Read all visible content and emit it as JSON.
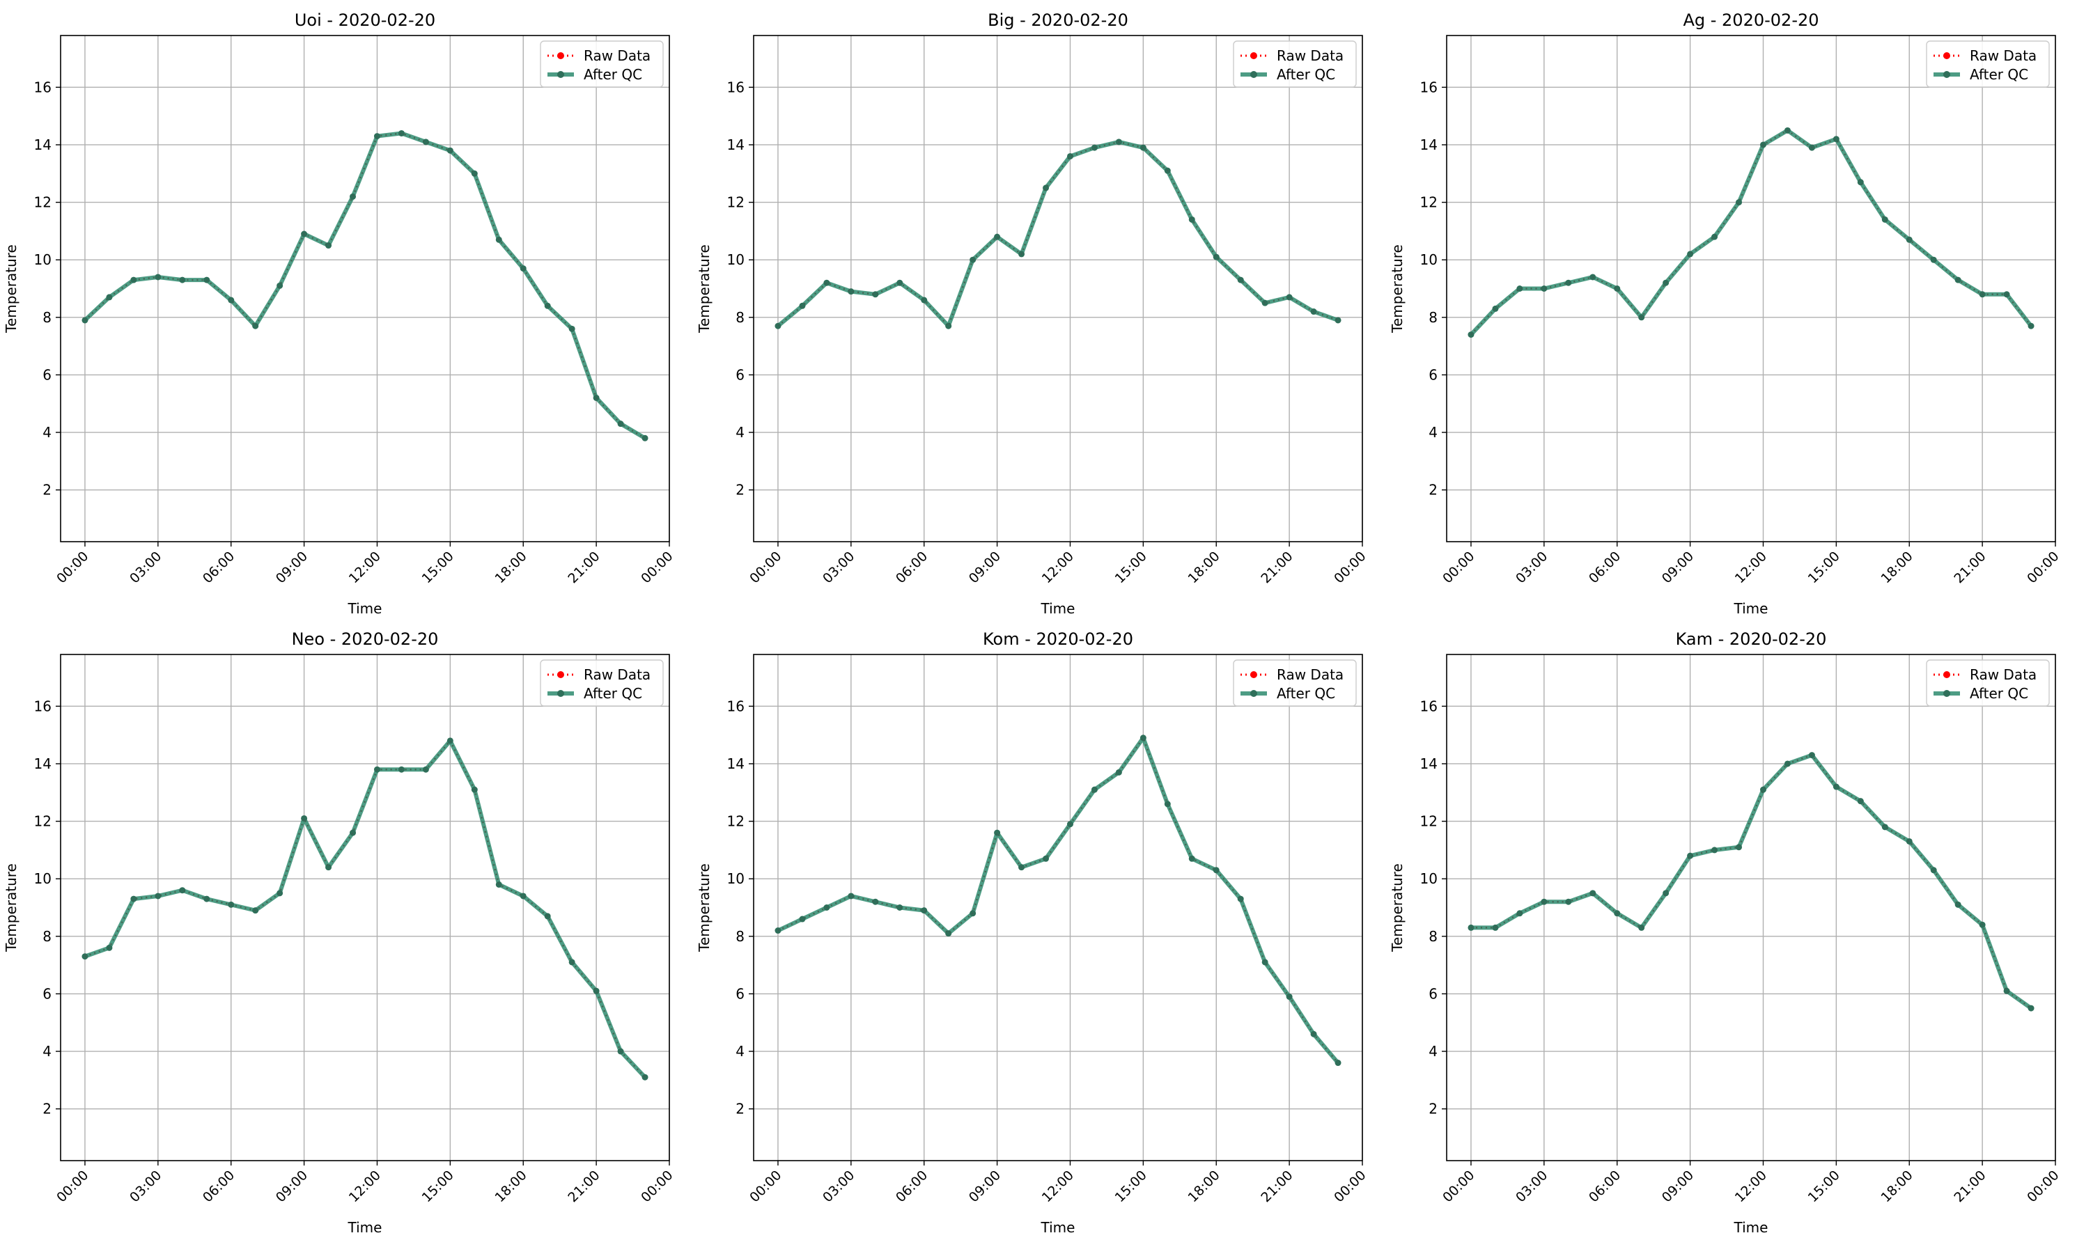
{
  "x_tick_labels": [
    "00:00",
    "03:00",
    "06:00",
    "09:00",
    "12:00",
    "15:00",
    "18:00",
    "21:00",
    "00:00"
  ],
  "y_tick_labels": [
    "2",
    "4",
    "6",
    "8",
    "10",
    "12",
    "14",
    "16"
  ],
  "xlabel": "Time",
  "ylabel": "Temperature",
  "legend": {
    "raw_label": "Raw Data",
    "qc_label": "After QC"
  },
  "colors": {
    "raw": "#ff0000",
    "qc": "#2e8b6f",
    "qc_marker": "#2f6f5a",
    "grid": "#b0b0b0"
  },
  "chart_data": [
    {
      "type": "line",
      "title": "Uoi - 2020-02-20",
      "xlabel": "Time",
      "ylabel": "Temperature",
      "x_unit": "hour of day",
      "xlim": [
        -1,
        24
      ],
      "ylim": [
        0.2,
        17.8
      ],
      "grid": true,
      "legend_position": "top-right",
      "x": [
        0,
        1,
        2,
        3,
        4,
        5,
        6,
        7,
        8,
        9,
        10,
        11,
        12,
        13,
        14,
        15,
        16,
        17,
        18,
        19,
        20,
        21,
        22,
        23
      ],
      "series": [
        {
          "name": "Raw Data",
          "values": [
            7.9,
            8.7,
            9.3,
            9.4,
            9.3,
            9.3,
            8.6,
            7.7,
            9.1,
            10.9,
            10.5,
            12.2,
            14.3,
            14.4,
            14.1,
            13.8,
            13.0,
            10.7,
            9.7,
            8.4,
            7.6,
            5.2,
            4.3,
            3.8
          ]
        },
        {
          "name": "After QC",
          "values": [
            7.9,
            8.7,
            9.3,
            9.4,
            9.3,
            9.3,
            8.6,
            7.7,
            9.1,
            10.9,
            10.5,
            12.2,
            14.3,
            14.4,
            14.1,
            13.8,
            13.0,
            10.7,
            9.7,
            8.4,
            7.6,
            5.2,
            4.3,
            3.8
          ]
        }
      ]
    },
    {
      "type": "line",
      "title": "Big - 2020-02-20",
      "xlabel": "Time",
      "ylabel": "Temperature",
      "x_unit": "hour of day",
      "xlim": [
        -1,
        24
      ],
      "ylim": [
        0.2,
        17.8
      ],
      "grid": true,
      "legend_position": "top-right",
      "x": [
        0,
        1,
        2,
        3,
        4,
        5,
        6,
        7,
        8,
        9,
        10,
        11,
        12,
        13,
        14,
        15,
        16,
        17,
        18,
        19,
        20,
        21,
        22,
        23
      ],
      "series": [
        {
          "name": "Raw Data",
          "values": [
            7.7,
            8.4,
            9.2,
            8.9,
            8.8,
            9.2,
            8.6,
            7.7,
            10.0,
            10.8,
            10.2,
            12.5,
            13.6,
            13.9,
            14.1,
            13.9,
            13.1,
            11.4,
            10.1,
            9.3,
            8.5,
            8.7,
            8.2,
            7.9
          ]
        },
        {
          "name": "After QC",
          "values": [
            7.7,
            8.4,
            9.2,
            8.9,
            8.8,
            9.2,
            8.6,
            7.7,
            10.0,
            10.8,
            10.2,
            12.5,
            13.6,
            13.9,
            14.1,
            13.9,
            13.1,
            11.4,
            10.1,
            9.3,
            8.5,
            8.7,
            8.2,
            7.9
          ]
        }
      ]
    },
    {
      "type": "line",
      "title": "Ag - 2020-02-20",
      "xlabel": "Time",
      "ylabel": "Temperature",
      "x_unit": "hour of day",
      "xlim": [
        -1,
        24
      ],
      "ylim": [
        0.2,
        17.8
      ],
      "grid": true,
      "legend_position": "top-right",
      "x": [
        0,
        1,
        2,
        3,
        4,
        5,
        6,
        7,
        8,
        9,
        10,
        11,
        12,
        13,
        14,
        15,
        16,
        17,
        18,
        19,
        20,
        21,
        22,
        23
      ],
      "series": [
        {
          "name": "Raw Data",
          "values": [
            7.4,
            8.3,
            9.0,
            9.0,
            9.2,
            9.4,
            9.0,
            8.0,
            9.2,
            10.2,
            10.8,
            12.0,
            14.0,
            14.5,
            13.9,
            14.2,
            12.7,
            11.4,
            10.7,
            10.0,
            9.3,
            8.8,
            8.8,
            7.7
          ]
        },
        {
          "name": "After QC",
          "values": [
            7.4,
            8.3,
            9.0,
            9.0,
            9.2,
            9.4,
            9.0,
            8.0,
            9.2,
            10.2,
            10.8,
            12.0,
            14.0,
            14.5,
            13.9,
            14.2,
            12.7,
            11.4,
            10.7,
            10.0,
            9.3,
            8.8,
            8.8,
            7.7
          ]
        }
      ]
    },
    {
      "type": "line",
      "title": "Neo - 2020-02-20",
      "xlabel": "Time",
      "ylabel": "Temperature",
      "x_unit": "hour of day",
      "xlim": [
        -1,
        24
      ],
      "ylim": [
        0.2,
        17.8
      ],
      "grid": true,
      "legend_position": "top-right",
      "x": [
        0,
        1,
        2,
        3,
        4,
        5,
        6,
        7,
        8,
        9,
        10,
        11,
        12,
        13,
        14,
        15,
        16,
        17,
        18,
        19,
        20,
        21,
        22,
        23
      ],
      "series": [
        {
          "name": "Raw Data",
          "values": [
            7.3,
            7.6,
            9.3,
            9.4,
            9.6,
            9.3,
            9.1,
            8.9,
            9.5,
            12.1,
            10.4,
            11.6,
            13.8,
            13.8,
            13.8,
            14.8,
            13.1,
            9.8,
            9.4,
            8.7,
            7.1,
            6.1,
            4.0,
            3.1
          ]
        },
        {
          "name": "After QC",
          "values": [
            7.3,
            7.6,
            9.3,
            9.4,
            9.6,
            9.3,
            9.1,
            8.9,
            9.5,
            12.1,
            10.4,
            11.6,
            13.8,
            13.8,
            13.8,
            14.8,
            13.1,
            9.8,
            9.4,
            8.7,
            7.1,
            6.1,
            4.0,
            3.1
          ]
        }
      ]
    },
    {
      "type": "line",
      "title": "Kom - 2020-02-20",
      "xlabel": "Time",
      "ylabel": "Temperature",
      "x_unit": "hour of day",
      "xlim": [
        -1,
        24
      ],
      "ylim": [
        0.2,
        17.8
      ],
      "grid": true,
      "legend_position": "top-right",
      "x": [
        0,
        1,
        2,
        3,
        4,
        5,
        6,
        7,
        8,
        9,
        10,
        11,
        12,
        13,
        14,
        15,
        16,
        17,
        18,
        19,
        20,
        21,
        22,
        23
      ],
      "series": [
        {
          "name": "Raw Data",
          "values": [
            8.2,
            8.6,
            9.0,
            9.4,
            9.2,
            9.0,
            8.9,
            8.1,
            8.8,
            11.6,
            10.4,
            10.7,
            11.9,
            13.1,
            13.7,
            14.9,
            12.6,
            10.7,
            10.3,
            9.3,
            7.1,
            5.9,
            4.6,
            3.6
          ]
        },
        {
          "name": "After QC",
          "values": [
            8.2,
            8.6,
            9.0,
            9.4,
            9.2,
            9.0,
            8.9,
            8.1,
            8.8,
            11.6,
            10.4,
            10.7,
            11.9,
            13.1,
            13.7,
            14.9,
            12.6,
            10.7,
            10.3,
            9.3,
            7.1,
            5.9,
            4.6,
            3.6
          ]
        }
      ]
    },
    {
      "type": "line",
      "title": "Kam - 2020-02-20",
      "xlabel": "Time",
      "ylabel": "Temperature",
      "x_unit": "hour of day",
      "xlim": [
        -1,
        24
      ],
      "ylim": [
        0.2,
        17.8
      ],
      "grid": true,
      "legend_position": "top-right",
      "x": [
        0,
        1,
        2,
        3,
        4,
        5,
        6,
        7,
        8,
        9,
        10,
        11,
        12,
        13,
        14,
        15,
        16,
        17,
        18,
        19,
        20,
        21,
        22,
        23
      ],
      "series": [
        {
          "name": "Raw Data",
          "values": [
            8.3,
            8.3,
            8.8,
            9.2,
            9.2,
            9.5,
            8.8,
            8.3,
            9.5,
            10.8,
            11.0,
            11.1,
            13.1,
            14.0,
            14.3,
            13.2,
            12.7,
            11.8,
            11.3,
            10.3,
            9.1,
            8.4,
            6.1,
            5.5
          ]
        },
        {
          "name": "After QC",
          "values": [
            8.3,
            8.3,
            8.8,
            9.2,
            9.2,
            9.5,
            8.8,
            8.3,
            9.5,
            10.8,
            11.0,
            11.1,
            13.1,
            14.0,
            14.3,
            13.2,
            12.7,
            11.8,
            11.3,
            10.3,
            9.1,
            8.4,
            6.1,
            5.5
          ]
        }
      ]
    }
  ]
}
